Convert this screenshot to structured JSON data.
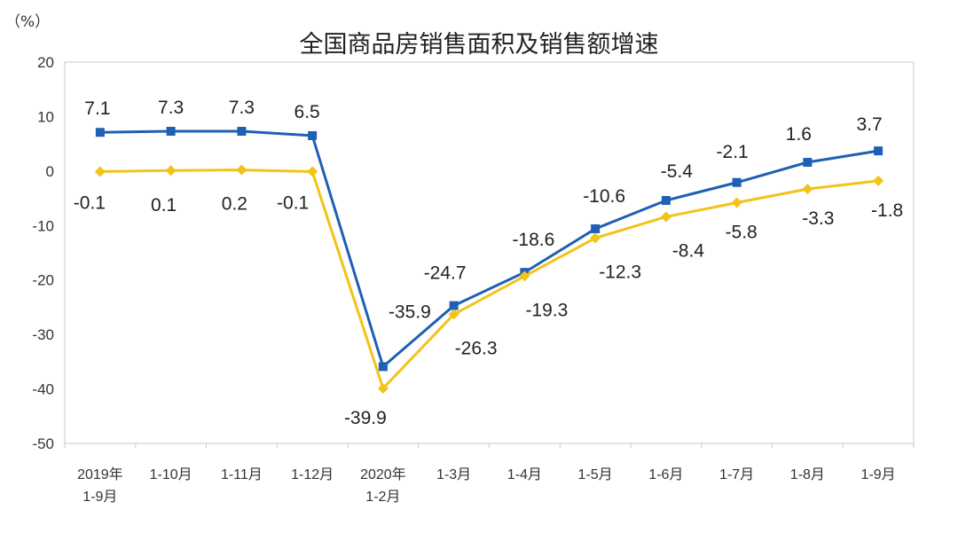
{
  "chart_data": {
    "type": "line",
    "title": "全国商品房销售面积及销售额增速",
    "unit_label": "（%）",
    "xlabel": "",
    "ylabel": "",
    "ylim": [
      -50,
      20
    ],
    "yticks": [
      20,
      10,
      0,
      -10,
      -20,
      -30,
      -40,
      -50
    ],
    "grid": false,
    "legend": "none",
    "categories": [
      [
        "2019年",
        "1-9月"
      ],
      [
        "1-10月"
      ],
      [
        "1-11月"
      ],
      [
        "1-12月"
      ],
      [
        "2020年",
        "1-2月"
      ],
      [
        "1-3月"
      ],
      [
        "1-4月"
      ],
      [
        "1-5月"
      ],
      [
        "1-6月"
      ],
      [
        "1-7月"
      ],
      [
        "1-8月"
      ],
      [
        "1-9月"
      ]
    ],
    "series": [
      {
        "color": "#1f5fb4",
        "marker": "square",
        "values": [
          7.1,
          7.3,
          7.3,
          6.5,
          -35.9,
          -24.7,
          -18.6,
          -10.6,
          -5.4,
          -2.1,
          1.6,
          3.7
        ],
        "labels": [
          "7.1",
          "7.3",
          "7.3",
          "6.5",
          "-35.9",
          "-24.7",
          "-18.6",
          "-10.6",
          "-5.4",
          "-2.1",
          "1.6",
          "3.7"
        ]
      },
      {
        "color": "#f2c318",
        "marker": "diamond",
        "values": [
          -0.1,
          0.1,
          0.2,
          -0.1,
          -39.9,
          -26.3,
          -19.3,
          -12.3,
          -8.4,
          -5.8,
          -3.3,
          -1.8
        ],
        "labels": [
          "-0.1",
          "0.1",
          "0.2",
          "-0.1",
          "-39.9",
          "-26.3",
          "-19.3",
          "-12.3",
          "-8.4",
          "-5.8",
          "-3.3",
          "-1.8"
        ]
      }
    ]
  }
}
